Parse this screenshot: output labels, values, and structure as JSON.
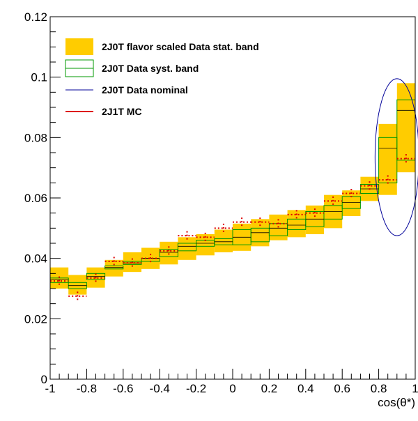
{
  "chart_data": {
    "type": "bar",
    "title": "",
    "xlabel": "cos(θ*)",
    "ylabel": "",
    "xlim": [
      -1,
      1
    ],
    "ylim": [
      0,
      0.12
    ],
    "x_ticks": [
      -1,
      -0.8,
      -0.6,
      -0.4,
      -0.2,
      0,
      0.2,
      0.4,
      0.6,
      0.8,
      1
    ],
    "x_tick_labels": [
      "-1",
      "-0.8",
      "-0.6",
      "-0.4",
      "-0.2",
      "0",
      "0.2",
      "0.4",
      "0.6",
      "0.8",
      "1"
    ],
    "y_ticks": [
      0,
      0.02,
      0.04,
      0.06,
      0.08,
      0.1,
      0.12
    ],
    "y_tick_labels": [
      "0",
      "0.02",
      "0.04",
      "0.06",
      "0.08",
      "0.1",
      "0.12"
    ],
    "grid": false,
    "legend_position": "top-left",
    "bin_edges": [
      -1,
      -0.9,
      -0.8,
      -0.7,
      -0.6,
      -0.5,
      -0.4,
      -0.3,
      -0.2,
      -0.1,
      0,
      0.1,
      0.2,
      0.3,
      0.4,
      0.5,
      0.6,
      0.7,
      0.8,
      0.9,
      1.0
    ],
    "colors": {
      "stat_band": "#ffcc00",
      "syst_band": "#009900",
      "nominal": "#000099",
      "mc": "#dd0000"
    },
    "series": [
      {
        "name": "2J0T flavor scaled Data stat. band",
        "style": "fill-band",
        "low": [
          0.03,
          0.028,
          0.0303,
          0.034,
          0.0355,
          0.0365,
          0.038,
          0.0395,
          0.041,
          0.042,
          0.0425,
          0.044,
          0.046,
          0.047,
          0.048,
          0.05,
          0.054,
          0.059,
          0.061,
          0.0685
        ],
        "high": [
          0.037,
          0.0345,
          0.037,
          0.0395,
          0.042,
          0.0435,
          0.0455,
          0.047,
          0.048,
          0.0495,
          0.0515,
          0.053,
          0.0545,
          0.056,
          0.0575,
          0.061,
          0.0625,
          0.067,
          0.0845,
          0.098
        ]
      },
      {
        "name": "2J0T Data syst. band",
        "style": "outline-band",
        "low": [
          0.032,
          0.03,
          0.033,
          0.0365,
          0.038,
          0.039,
          0.0405,
          0.0425,
          0.044,
          0.0445,
          0.0445,
          0.0455,
          0.0475,
          0.0495,
          0.0505,
          0.053,
          0.0565,
          0.0615,
          0.065,
          0.0725
        ],
        "high": [
          0.0335,
          0.032,
          0.035,
          0.0375,
          0.039,
          0.04,
          0.043,
          0.045,
          0.046,
          0.0465,
          0.0495,
          0.05,
          0.0515,
          0.053,
          0.0555,
          0.0575,
          0.0605,
          0.0645,
          0.08,
          0.0925
        ]
      },
      {
        "name": "2J0T Data nominal",
        "style": "step",
        "values": [
          0.033,
          0.031,
          0.034,
          0.037,
          0.0385,
          0.04,
          0.042,
          0.044,
          0.045,
          0.0455,
          0.047,
          0.0485,
          0.05,
          0.051,
          0.053,
          0.0555,
          0.0585,
          0.063,
          0.0765,
          0.089
        ]
      },
      {
        "name": "2J1T MC",
        "style": "points-with-errors",
        "values": [
          0.0325,
          0.0275,
          0.0335,
          0.039,
          0.0385,
          0.04,
          0.0425,
          0.0475,
          0.047,
          0.05,
          0.052,
          0.052,
          0.0515,
          0.0545,
          0.055,
          0.059,
          0.0615,
          0.064,
          0.066,
          0.073
        ],
        "errors": [
          0.0015,
          0.0015,
          0.0015,
          0.0015,
          0.0015,
          0.0015,
          0.0015,
          0.0015,
          0.0015,
          0.0015,
          0.0015,
          0.0015,
          0.0015,
          0.0015,
          0.0015,
          0.0015,
          0.0015,
          0.0015,
          0.0015,
          0.0015
        ]
      }
    ],
    "annotations": [
      {
        "type": "ellipse",
        "center": [
          0.9,
          0.0735
        ],
        "radius_x": 0.12,
        "radius_y": 0.026,
        "color": "#000099"
      }
    ],
    "legend": [
      {
        "label": "2J0T flavor scaled Data stat. band",
        "series": 0
      },
      {
        "label": "2J0T Data syst. band",
        "series": 1
      },
      {
        "label": "2J0T Data nominal",
        "series": 2
      },
      {
        "label": "2J1T MC",
        "series": 3
      }
    ]
  }
}
